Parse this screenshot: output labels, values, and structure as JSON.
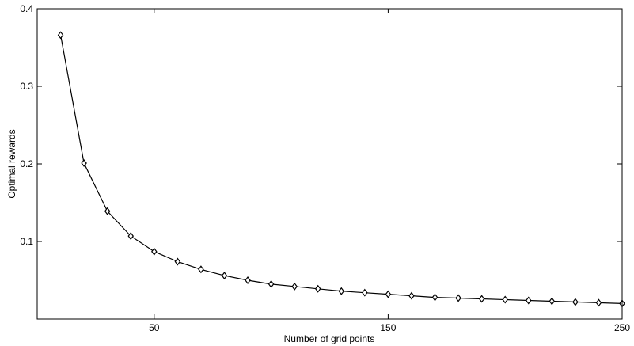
{
  "chart_data": {
    "type": "line",
    "title": "",
    "xlabel": "Number of grid points",
    "ylabel": "Optimal rewards",
    "xlim": [
      0,
      250
    ],
    "ylim": [
      0,
      0.4
    ],
    "x_ticks": [
      50,
      150,
      250
    ],
    "x_tick_labels": [
      "50",
      "150",
      "250"
    ],
    "y_ticks": [
      0.1,
      0.2,
      0.3,
      0.4
    ],
    "y_tick_labels": [
      "0.1",
      "0.2",
      "0.3",
      "0.4"
    ],
    "grid": false,
    "marker": "diamond",
    "line_color": "#000000",
    "series": [
      {
        "x": [
          10,
          20,
          30,
          40,
          50,
          60,
          70,
          80,
          90,
          100,
          110,
          120,
          130,
          140,
          150,
          160,
          170,
          180,
          190,
          200,
          210,
          220,
          230,
          240,
          250
        ],
        "values": [
          0.366,
          0.201,
          0.139,
          0.107,
          0.087,
          0.074,
          0.064,
          0.056,
          0.05,
          0.045,
          0.042,
          0.039,
          0.036,
          0.034,
          0.032,
          0.03,
          0.028,
          0.027,
          0.026,
          0.025,
          0.024,
          0.023,
          0.022,
          0.021,
          0.02
        ]
      }
    ]
  }
}
